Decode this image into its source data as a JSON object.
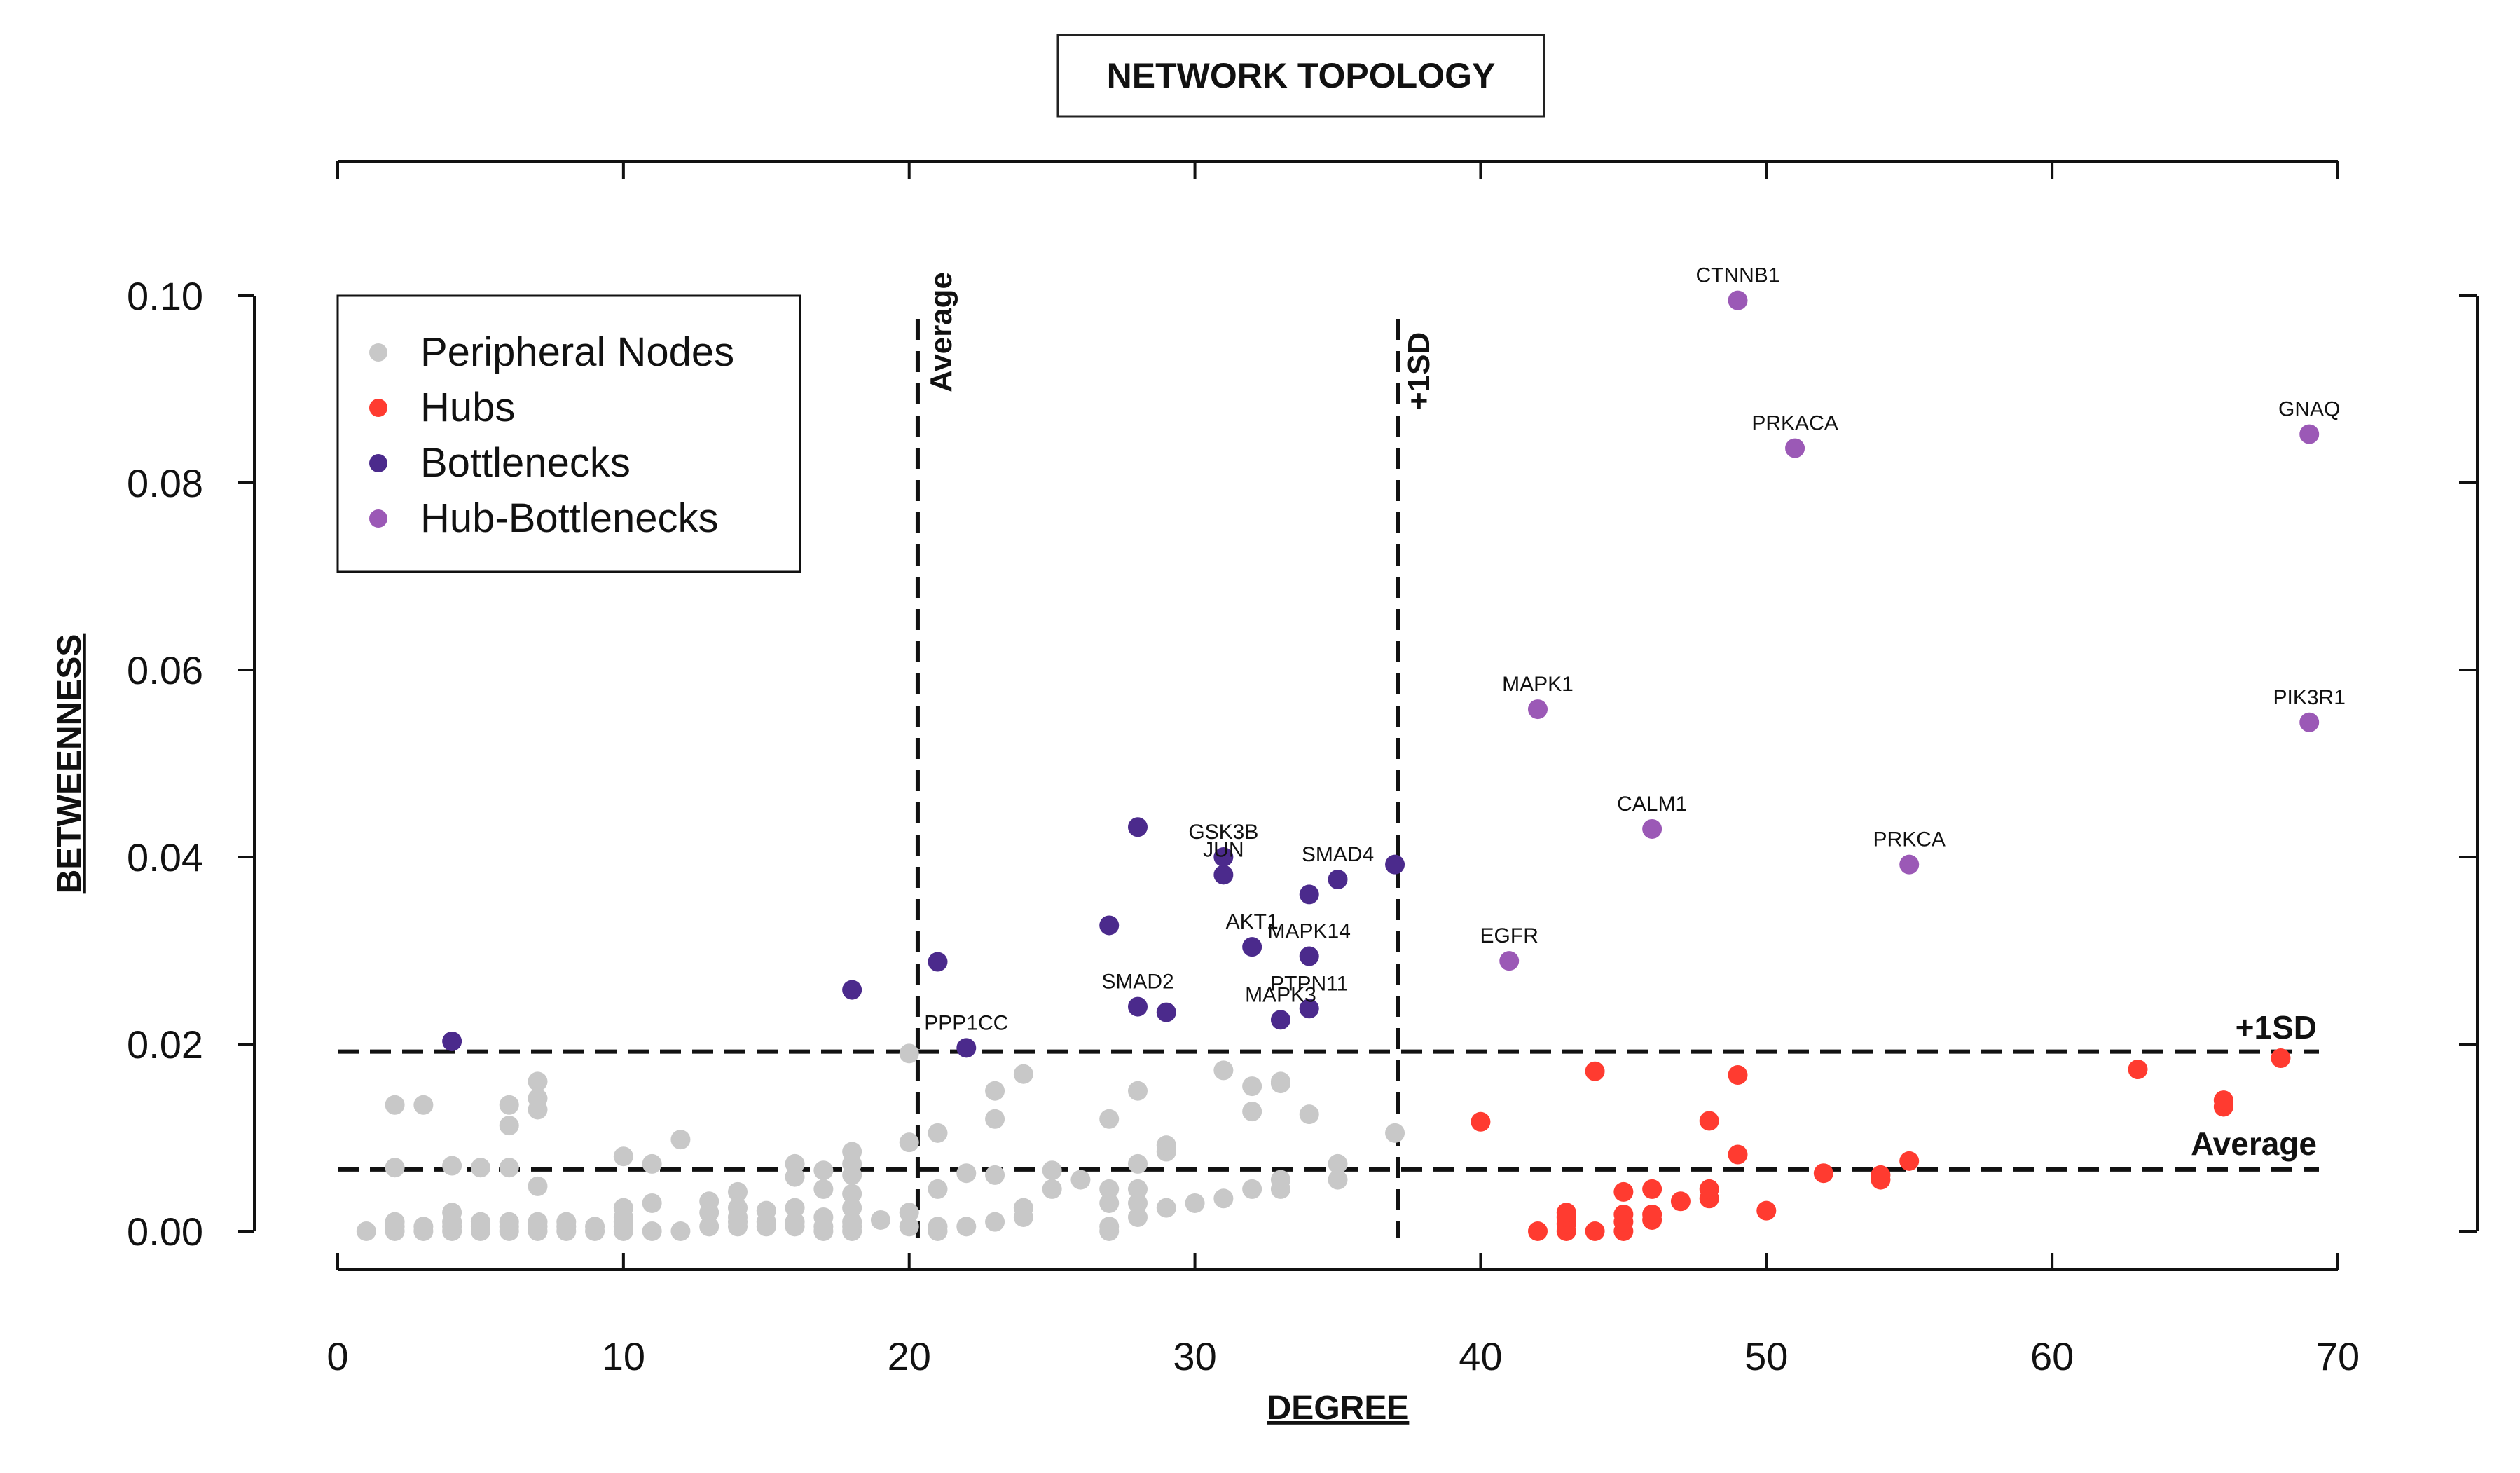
{
  "chart_data": {
    "type": "scatter",
    "title": "NETWORK TOPOLOGY",
    "xlabel": "DEGREE",
    "ylabel": "BETWEENNESS",
    "xlim": [
      0,
      70
    ],
    "ylim": [
      0,
      0.1
    ],
    "x_ticks": [
      "0",
      "10",
      "20",
      "30",
      "40",
      "50",
      "60",
      "70"
    ],
    "y_ticks": [
      "0.00",
      "0.02",
      "0.04",
      "0.06",
      "0.08",
      "0.10"
    ],
    "grid": false,
    "legend_position": "top-left",
    "thresholds": {
      "degree_average": 20.3,
      "degree_plus1sd": 37.1,
      "betweenness_average": 0.0066,
      "betweenness_plus1sd": 0.0192,
      "vertical_labels": {
        "average": "Average",
        "plus1sd": "+1SD"
      },
      "horizontal_labels": {
        "average": "Average",
        "plus1sd": "+1SD"
      }
    },
    "series": [
      {
        "name": "Peripheral Nodes",
        "color": "#c8c8c8",
        "points": [
          [
            1,
            0
          ],
          [
            2,
            0
          ],
          [
            2,
            0.0005
          ],
          [
            2,
            0.001
          ],
          [
            2,
            0.0068
          ],
          [
            2,
            0.0135
          ],
          [
            3,
            0
          ],
          [
            3,
            0.0005
          ],
          [
            3,
            0.0135
          ],
          [
            4,
            0
          ],
          [
            4,
            0.0005
          ],
          [
            4,
            0.001
          ],
          [
            4,
            0.002
          ],
          [
            4,
            0.007
          ],
          [
            5,
            0
          ],
          [
            5,
            0.0005
          ],
          [
            5,
            0.001
          ],
          [
            5,
            0.0068
          ],
          [
            6,
            0
          ],
          [
            6,
            0.0005
          ],
          [
            6,
            0.001
          ],
          [
            6,
            0.0068
          ],
          [
            6,
            0.0113
          ],
          [
            6,
            0.0135
          ],
          [
            7,
            0
          ],
          [
            7,
            0.0005
          ],
          [
            7,
            0.001
          ],
          [
            7,
            0.0048
          ],
          [
            7,
            0.013
          ],
          [
            7,
            0.0142
          ],
          [
            7,
            0.016
          ],
          [
            8,
            0
          ],
          [
            8,
            0.0005
          ],
          [
            8,
            0.001
          ],
          [
            9,
            0
          ],
          [
            9,
            0.0005
          ],
          [
            10,
            0
          ],
          [
            10,
            0.0005
          ],
          [
            10,
            0.001
          ],
          [
            10,
            0.0015
          ],
          [
            10,
            0.0025
          ],
          [
            10,
            0.008
          ],
          [
            11,
            0
          ],
          [
            11,
            0.003
          ],
          [
            11,
            0.0072
          ],
          [
            12,
            0
          ],
          [
            12,
            0.0098
          ],
          [
            13,
            0.0005
          ],
          [
            13,
            0.002
          ],
          [
            13,
            0.0032
          ],
          [
            14,
            0.0005
          ],
          [
            14,
            0.001
          ],
          [
            14,
            0.0015
          ],
          [
            14,
            0.0025
          ],
          [
            14,
            0.0042
          ],
          [
            15,
            0.0005
          ],
          [
            15,
            0.001
          ],
          [
            15,
            0.0022
          ],
          [
            16,
            0.0005
          ],
          [
            16,
            0.001
          ],
          [
            16,
            0.0025
          ],
          [
            16,
            0.0058
          ],
          [
            16,
            0.0072
          ],
          [
            17,
            0
          ],
          [
            17,
            0.0005
          ],
          [
            17,
            0.0015
          ],
          [
            17,
            0.0045
          ],
          [
            17,
            0.0065
          ],
          [
            18,
            0
          ],
          [
            18,
            0.0005
          ],
          [
            18,
            0.001
          ],
          [
            18,
            0.0025
          ],
          [
            18,
            0.004
          ],
          [
            18,
            0.006
          ],
          [
            18,
            0.0072
          ],
          [
            18,
            0.0085
          ],
          [
            19,
            0.0012
          ],
          [
            20,
            0.0005
          ],
          [
            20,
            0.002
          ],
          [
            20,
            0.0095
          ],
          [
            20,
            0.019
          ],
          [
            21,
            0
          ],
          [
            21,
            0.0005
          ],
          [
            21,
            0.0045
          ],
          [
            21,
            0.0105
          ],
          [
            22,
            0.0005
          ],
          [
            22,
            0.0062
          ],
          [
            23,
            0.001
          ],
          [
            23,
            0.006
          ],
          [
            23,
            0.012
          ],
          [
            23,
            0.015
          ],
          [
            24,
            0.0015
          ],
          [
            24,
            0.0025
          ],
          [
            24,
            0.0168
          ],
          [
            25,
            0.0045
          ],
          [
            25,
            0.0065
          ],
          [
            26,
            0.0055
          ],
          [
            27,
            0
          ],
          [
            27,
            0.0005
          ],
          [
            27,
            0.003
          ],
          [
            27,
            0.0045
          ],
          [
            27,
            0.012
          ],
          [
            28,
            0.0015
          ],
          [
            28,
            0.003
          ],
          [
            28,
            0.0045
          ],
          [
            28,
            0.0072
          ],
          [
            28,
            0.015
          ],
          [
            29,
            0.0025
          ],
          [
            29,
            0.0085
          ],
          [
            29,
            0.0092
          ],
          [
            30,
            0.003
          ],
          [
            31,
            0.0035
          ],
          [
            31,
            0.0172
          ],
          [
            32,
            0.0045
          ],
          [
            32,
            0.0128
          ],
          [
            32,
            0.0155
          ],
          [
            33,
            0.0045
          ],
          [
            33,
            0.0055
          ],
          [
            33,
            0.0158
          ],
          [
            33,
            0.016
          ],
          [
            34,
            0.0125
          ],
          [
            35,
            0.0055
          ],
          [
            35,
            0.0072
          ],
          [
            37,
            0.0105
          ]
        ]
      },
      {
        "name": "Hubs",
        "color": "#ff3b30",
        "points": [
          [
            40,
            0.0117
          ],
          [
            42,
            0
          ],
          [
            43,
            0
          ],
          [
            43,
            0.0008
          ],
          [
            43,
            0.0015
          ],
          [
            43,
            0.002
          ],
          [
            44,
            0
          ],
          [
            44,
            0.0171
          ],
          [
            45,
            0
          ],
          [
            45,
            0.001
          ],
          [
            45,
            0.0018
          ],
          [
            45,
            0.0042
          ],
          [
            46,
            0.0012
          ],
          [
            46,
            0.0018
          ],
          [
            46,
            0.0045
          ],
          [
            47,
            0.0032
          ],
          [
            48,
            0.0035
          ],
          [
            48,
            0.0045
          ],
          [
            48,
            0.0118
          ],
          [
            49,
            0.0082
          ],
          [
            49,
            0.0167
          ],
          [
            50,
            0.0022
          ],
          [
            52,
            0.0062
          ],
          [
            54,
            0.0055
          ],
          [
            54,
            0.006
          ],
          [
            55,
            0.0075
          ],
          [
            63,
            0.0173
          ],
          [
            66,
            0.0133
          ],
          [
            66,
            0.014
          ],
          [
            68,
            0.0185
          ]
        ]
      },
      {
        "name": "Bottlenecks",
        "color": "#4b2a8c",
        "points": [
          [
            4,
            0.0203
          ],
          [
            18,
            0.0258
          ],
          [
            21,
            0.0288
          ],
          [
            22,
            0.0196
          ],
          [
            27,
            0.0327
          ],
          [
            28,
            0.0432
          ],
          [
            28,
            0.024
          ],
          [
            29,
            0.0234
          ],
          [
            31,
            0.0381
          ],
          [
            31,
            0.04
          ],
          [
            32,
            0.0304
          ],
          [
            33,
            0.0226
          ],
          [
            34,
            0.036
          ],
          [
            34,
            0.0294
          ],
          [
            34,
            0.0238
          ],
          [
            35,
            0.0376
          ],
          [
            37,
            0.0392
          ]
        ]
      },
      {
        "name": "Hub-Bottlenecks",
        "color": "#9b59b6",
        "points": [
          [
            41,
            0.0289
          ],
          [
            42,
            0.0558
          ],
          [
            46,
            0.043
          ],
          [
            49,
            0.0995
          ],
          [
            51,
            0.0837
          ],
          [
            55,
            0.0392
          ],
          [
            69,
            0.0852
          ],
          [
            69,
            0.0544
          ]
        ]
      }
    ],
    "labeled_points": [
      {
        "label": "CTNNB1",
        "x": 49,
        "y": 0.0995
      },
      {
        "label": "PRKACA",
        "x": 51,
        "y": 0.0837
      },
      {
        "label": "GNAQ",
        "x": 69,
        "y": 0.0852
      },
      {
        "label": "MAPK1",
        "x": 42,
        "y": 0.0558
      },
      {
        "label": "PIK3R1",
        "x": 69,
        "y": 0.0544
      },
      {
        "label": "CALM1",
        "x": 46,
        "y": 0.043
      },
      {
        "label": "PRKCA",
        "x": 55,
        "y": 0.0392
      },
      {
        "label": "EGFR",
        "x": 41,
        "y": 0.0289
      },
      {
        "label": "GSK3B",
        "x": 31,
        "y": 0.04
      },
      {
        "label": "JUN",
        "x": 31,
        "y": 0.0381
      },
      {
        "label": "SMAD4",
        "x": 35,
        "y": 0.0376
      },
      {
        "label": "AKT1",
        "x": 32,
        "y": 0.0304
      },
      {
        "label": "MAPK14",
        "x": 34,
        "y": 0.0294
      },
      {
        "label": "SMAD2",
        "x": 28,
        "y": 0.024
      },
      {
        "label": "PTPN11",
        "x": 34,
        "y": 0.0238
      },
      {
        "label": "MAPK3",
        "x": 33,
        "y": 0.0226
      },
      {
        "label": "PPP1CC",
        "x": 22,
        "y": 0.0196
      }
    ]
  }
}
